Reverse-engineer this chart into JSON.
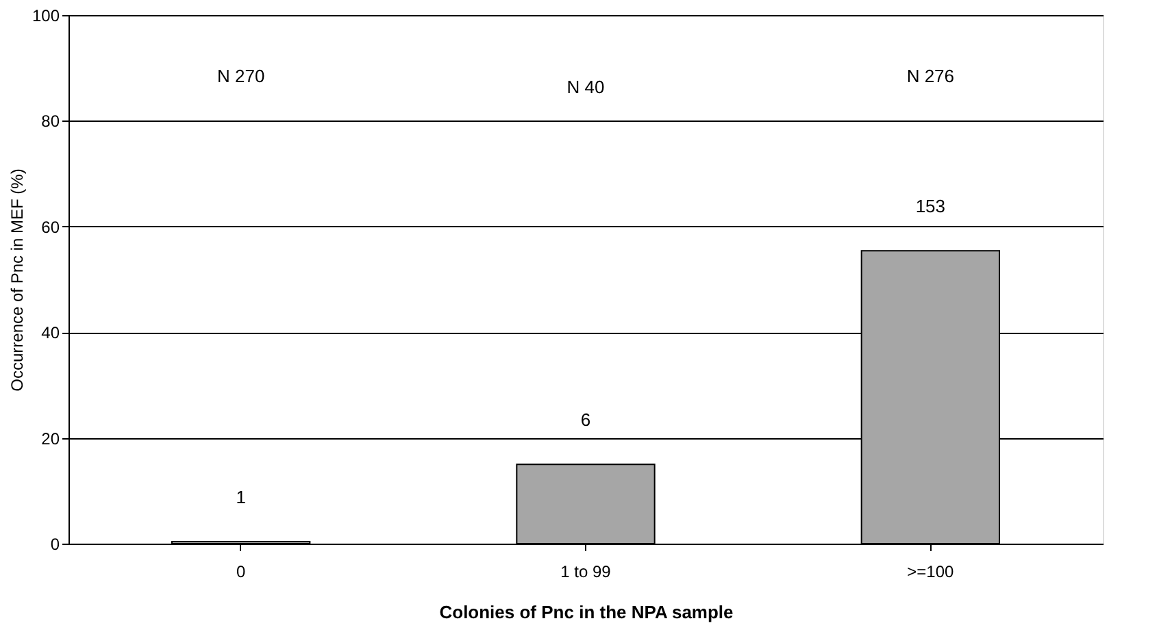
{
  "chart_data": {
    "type": "bar",
    "xlabel": "Colonies of Pnc in the NPA sample",
    "ylabel": "Occurrence of Pnc in MEF (%)",
    "categories": [
      "0",
      "1 to 99",
      ">=100"
    ],
    "values": [
      0.4,
      15,
      55.4
    ],
    "color": "#a6a6a6",
    "annotations": [
      "N 270",
      "N 40",
      "N 276",
      {
        "text": "1",
        "x": "0",
        "y": 0.4
      },
      {
        "text": "6",
        "x": "1 to 99",
        "y": 15
      },
      {
        "text": "153",
        "x": ">=100",
        "y": 55.4
      }
    ],
    "ylim": [
      0,
      100
    ],
    "yticks": [
      0,
      20,
      40,
      60,
      80,
      100
    ],
    "grid": "y"
  }
}
